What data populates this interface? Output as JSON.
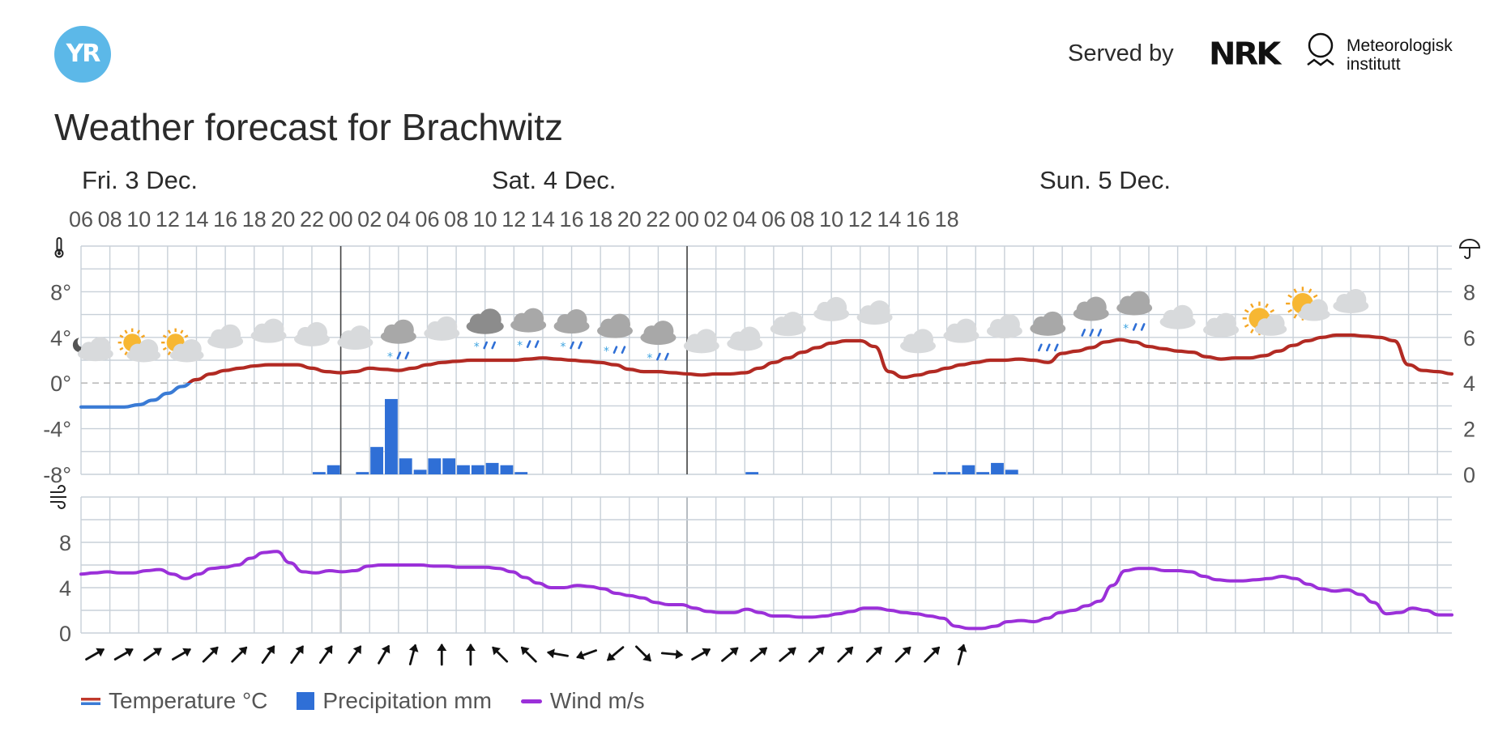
{
  "header": {
    "logo_text": "YR",
    "served_by": "Served by",
    "nrk_logo": "NRK",
    "met_name_line1": "Meteorologisk",
    "met_name_line2": "institutt"
  },
  "page_title": "Weather forecast for Brachwitz",
  "icons": {
    "thermometer": "thermometer-icon",
    "umbrella": "umbrella-icon",
    "wind": "wind-icon"
  },
  "colors": {
    "temp_warm": "#b22a23",
    "temp_cold": "#3a7bd5",
    "precip": "#2f6fd6",
    "wind": "#9b30d9",
    "brand": "#5cb8e8"
  },
  "chart_data": [
    {
      "type": "line",
      "title": "",
      "days": [
        {
          "label": "Fri. 3 Dec.",
          "start_hour_index": 0
        },
        {
          "label": "Sat. 4 Dec.",
          "start_hour_index": 18
        },
        {
          "label": "Sun. 5 Dec.",
          "start_hour_index": 42
        }
      ],
      "x_tick_labels": [
        "06",
        "08",
        "10",
        "12",
        "14",
        "16",
        "18",
        "20",
        "22",
        "00",
        "02",
        "04",
        "06",
        "08",
        "10",
        "12",
        "14",
        "16",
        "18",
        "20",
        "22",
        "00",
        "02",
        "04",
        "06",
        "08",
        "10",
        "12",
        "14",
        "16",
        "18"
      ],
      "y_ticks_left": [
        "8°",
        "4°",
        "0°",
        "-4°",
        "-8°"
      ],
      "y_ticks_left_values": [
        8,
        4,
        0,
        -4,
        -8
      ],
      "y_ticks_right": [
        "8",
        "6",
        "4",
        "2",
        "0"
      ],
      "y_ticks_right_values": [
        8,
        6,
        4,
        2,
        0
      ],
      "ylim_left": [
        -8,
        12
      ],
      "ylim_right": [
        0,
        10
      ],
      "series": [
        {
          "name": "Temperature °C",
          "unit": "°C",
          "values": [
            -2.1,
            -2.1,
            -2.1,
            -2.1,
            -1.9,
            -1.5,
            -0.9,
            -0.3,
            0.3,
            0.8,
            1.1,
            1.3,
            1.5,
            1.6,
            1.6,
            1.6,
            1.3,
            1.0,
            0.9,
            1.0,
            1.3,
            1.2,
            1.1,
            1.3,
            1.6,
            1.8,
            1.9,
            2.0,
            2.0,
            2.0,
            2.0,
            2.1,
            2.2,
            2.1,
            2.0,
            1.9,
            1.8,
            1.6,
            1.2,
            1.0,
            1.0,
            0.9,
            0.8,
            0.7,
            0.8,
            0.8,
            0.9,
            1.3,
            1.8,
            2.2,
            2.7,
            3.1,
            3.5,
            3.7,
            3.7,
            3.2,
            1.0,
            0.5,
            0.7,
            1.0,
            1.3,
            1.6,
            1.8,
            2.0,
            2.0,
            2.1,
            2.0,
            1.8,
            2.6,
            2.8,
            3.1,
            3.6,
            3.8,
            3.6,
            3.2,
            3.0,
            2.8,
            2.7,
            2.3,
            2.1,
            2.2,
            2.2,
            2.4,
            2.8,
            3.3,
            3.7,
            4.0,
            4.2,
            4.2,
            4.1,
            4.0,
            3.7,
            1.6,
            1.1,
            1.0,
            0.8
          ]
        },
        {
          "name": "Precipitation mm",
          "unit": "mm",
          "values": [
            0,
            0,
            0,
            0,
            0,
            0,
            0,
            0,
            0,
            0,
            0,
            0,
            0,
            0,
            0,
            0,
            0.1,
            0.4,
            0,
            0.1,
            1.2,
            3.3,
            0.7,
            0.2,
            0.7,
            0.7,
            0.4,
            0.4,
            0.5,
            0.4,
            0.1,
            0,
            0,
            0,
            0,
            0,
            0,
            0,
            0,
            0,
            0,
            0,
            0,
            0,
            0,
            0,
            0.1,
            0,
            0,
            0,
            0,
            0,
            0,
            0,
            0,
            0,
            0,
            0,
            0,
            0.1,
            0.1,
            0.4,
            0.1,
            0.5,
            0.2,
            0,
            0,
            0,
            0,
            0,
            0,
            0,
            0,
            0,
            0,
            0,
            0,
            0,
            0,
            0,
            0,
            0,
            0,
            0,
            0,
            0,
            0,
            0,
            0,
            0,
            0,
            0,
            0,
            0,
            0,
            0
          ]
        }
      ],
      "weather_symbols": [
        "night-cloudy",
        "partly-cloudy",
        "partly-cloudy",
        "cloudy",
        "cloudy",
        "cloudy",
        "cloudy",
        "sleet-showers",
        "cloudy",
        "sleet-heavy",
        "sleet",
        "sleet",
        "sleet",
        "sleet",
        "cloudy",
        "cloudy",
        "cloudy",
        "cloudy",
        "cloudy",
        "cloudy",
        "cloudy",
        "cloudy",
        "rain",
        "rain",
        "sleet",
        "cloudy",
        "cloudy",
        "partly-sunny",
        "partly-sunny",
        "cloudy"
      ]
    },
    {
      "type": "line",
      "title": "",
      "y_ticks": [
        "8",
        "4",
        "0"
      ],
      "y_ticks_values": [
        8,
        4,
        0
      ],
      "ylim": [
        0,
        12
      ],
      "series": [
        {
          "name": "Wind m/s",
          "unit": "m/s",
          "values": [
            5.2,
            5.3,
            5.4,
            5.3,
            5.3,
            5.5,
            5.6,
            5.2,
            4.8,
            5.2,
            5.7,
            5.8,
            6.0,
            6.6,
            7.1,
            7.2,
            6.2,
            5.4,
            5.3,
            5.5,
            5.4,
            5.5,
            5.9,
            6.0,
            6.0,
            6.0,
            6.0,
            5.9,
            5.9,
            5.8,
            5.8,
            5.8,
            5.7,
            5.4,
            4.9,
            4.4,
            4.0,
            4.0,
            4.2,
            4.1,
            3.9,
            3.5,
            3.3,
            3.1,
            2.7,
            2.5,
            2.5,
            2.2,
            1.9,
            1.8,
            1.8,
            2.1,
            1.8,
            1.5,
            1.5,
            1.4,
            1.4,
            1.5,
            1.7,
            1.9,
            2.2,
            2.2,
            2.0,
            1.8,
            1.7,
            1.5,
            1.3,
            0.6,
            0.4,
            0.4,
            0.6,
            1.0,
            1.1,
            1.0,
            1.3,
            1.8,
            2.0,
            2.4,
            2.8,
            4.2,
            5.5,
            5.7,
            5.7,
            5.5,
            5.5,
            5.4,
            5.0,
            4.7,
            4.6,
            4.6,
            4.7,
            4.8,
            5.0,
            4.8,
            4.3,
            3.9,
            3.7,
            3.8,
            3.4,
            2.7,
            1.7,
            1.8,
            2.2,
            2.0,
            1.6,
            1.6
          ]
        }
      ],
      "wind_directions_deg": [
        60,
        60,
        55,
        60,
        45,
        45,
        35,
        35,
        35,
        35,
        30,
        15,
        0,
        0,
        -45,
        -45,
        -80,
        -110,
        -130,
        135,
        95,
        60,
        50,
        50,
        50,
        45,
        45,
        45,
        45,
        45,
        15
      ]
    }
  ],
  "legend": {
    "temperature": "Temperature °C",
    "precipitation": "Precipitation mm",
    "wind": "Wind m/s"
  }
}
